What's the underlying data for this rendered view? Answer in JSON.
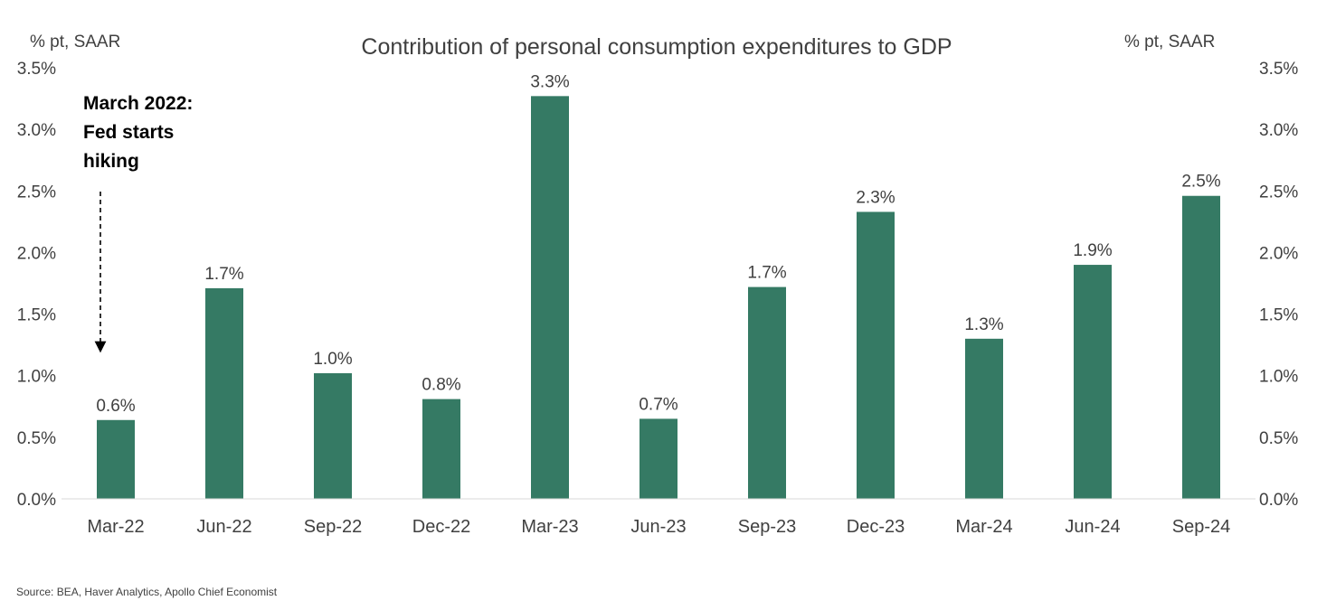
{
  "chart_data": {
    "type": "bar",
    "title": "Contribution of personal consumption expenditures to GDP",
    "ylabel_left": "% pt, SAAR",
    "ylabel_right": "% pt, SAAR",
    "categories": [
      "Mar-22",
      "Jun-22",
      "Sep-22",
      "Dec-22",
      "Mar-23",
      "Jun-23",
      "Sep-23",
      "Dec-23",
      "Mar-24",
      "Jun-24",
      "Sep-24"
    ],
    "values": [
      0.64,
      1.71,
      1.02,
      0.81,
      3.27,
      0.65,
      1.72,
      2.33,
      1.3,
      1.9,
      2.46
    ],
    "value_labels": [
      "0.6%",
      "1.7%",
      "1.0%",
      "0.8%",
      "3.3%",
      "0.7%",
      "1.7%",
      "2.3%",
      "1.3%",
      "1.9%",
      "2.5%"
    ],
    "ylim": [
      0,
      3.5
    ],
    "yticks": [
      "0.0%",
      "0.5%",
      "1.0%",
      "1.5%",
      "2.0%",
      "2.5%",
      "3.0%",
      "3.5%"
    ],
    "bar_color": "#357a64",
    "grid": false,
    "legend": "none",
    "annotation": {
      "lines": [
        "March 2022:",
        "Fed starts",
        "hiking"
      ],
      "arrow_style": "dashed",
      "points_to": "Mar-22"
    }
  },
  "source": "Source: BEA, Haver Analytics, Apollo Chief Economist"
}
